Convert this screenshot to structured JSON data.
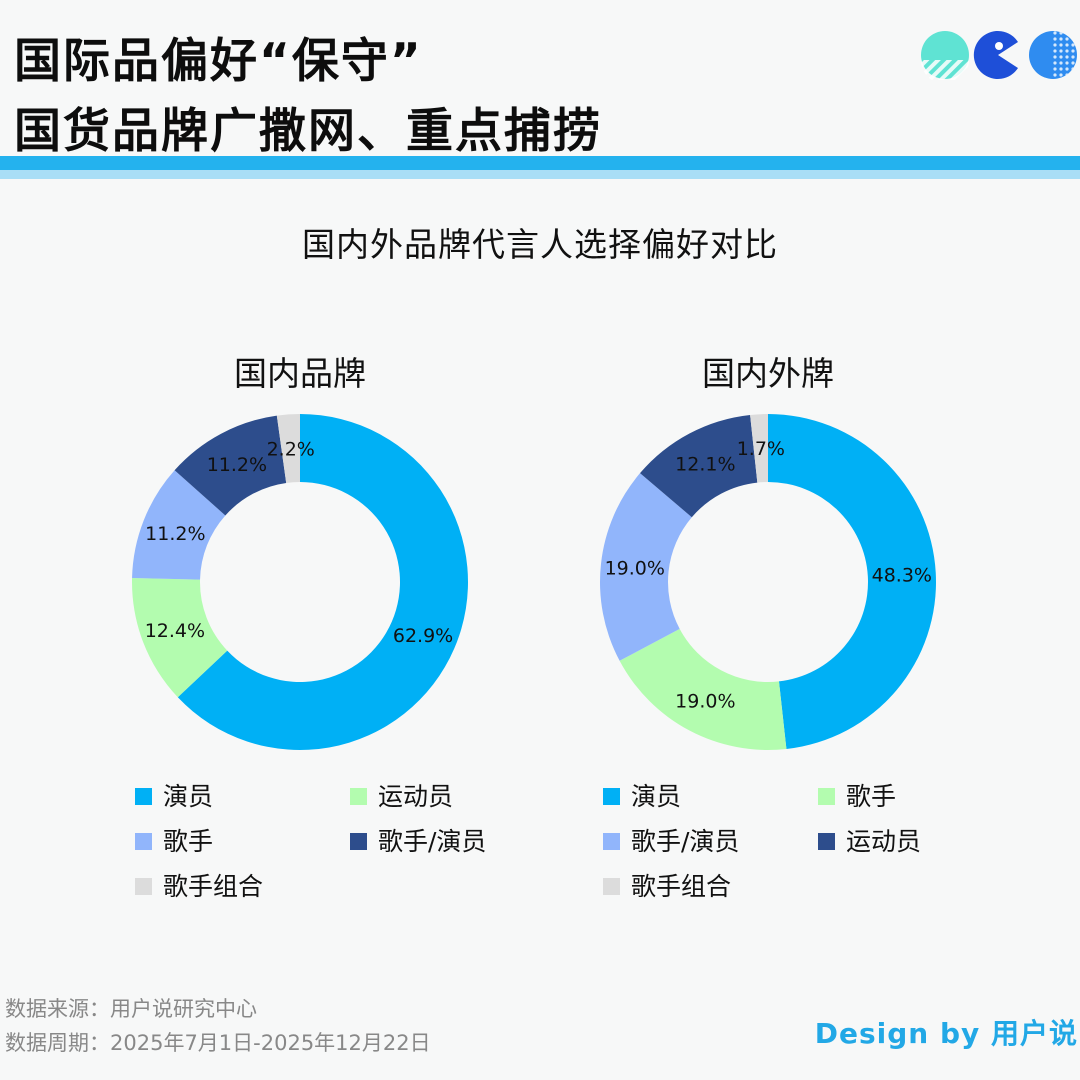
{
  "header": {
    "title_line1": "国际品偏好“保守”",
    "title_line2": "国货品牌广撒网、重点捕捞"
  },
  "chart_data": [
    {
      "type": "pie",
      "title": "国内品牌",
      "donut": true,
      "legend_placement": "bottom",
      "slices": [
        {
          "name": "演员",
          "value": 62.9,
          "label": "62.9%",
          "color": "#00b0f5"
        },
        {
          "name": "运动员",
          "value": 12.4,
          "label": "12.4%",
          "color": "#b3fcaf"
        },
        {
          "name": "歌手",
          "value": 11.2,
          "label": "11.2%",
          "color": "#91b5fb"
        },
        {
          "name": "歌手/演员",
          "value": 11.2,
          "label": "11.2%",
          "color": "#2d4d8c"
        },
        {
          "name": "歌手组合",
          "value": 2.2,
          "label": "2.2%",
          "color": "#dcdcdc"
        }
      ]
    },
    {
      "type": "pie",
      "title": "国内外牌",
      "donut": true,
      "legend_placement": "bottom",
      "slices": [
        {
          "name": "演员",
          "value": 48.3,
          "label": "48.3%",
          "color": "#00b0f5"
        },
        {
          "name": "歌手",
          "value": 19.0,
          "label": "19.0%",
          "color": "#b3fcaf"
        },
        {
          "name": "歌手/演员",
          "value": 19.0,
          "label": "19.0%",
          "color": "#91b5fb"
        },
        {
          "name": "运动员",
          "value": 12.1,
          "label": "12.1%",
          "color": "#2d4d8c"
        },
        {
          "name": "歌手组合",
          "value": 1.7,
          "label": "1.7%",
          "color": "#dcdcdc"
        }
      ]
    }
  ],
  "chart_title": "国内外品牌代言人选择偏好对比",
  "footer": {
    "source": "数据来源：用户说研究中心",
    "period": "数据周期：2025年7月1日-2025年12月22日",
    "credit": "Design by 用户说"
  }
}
